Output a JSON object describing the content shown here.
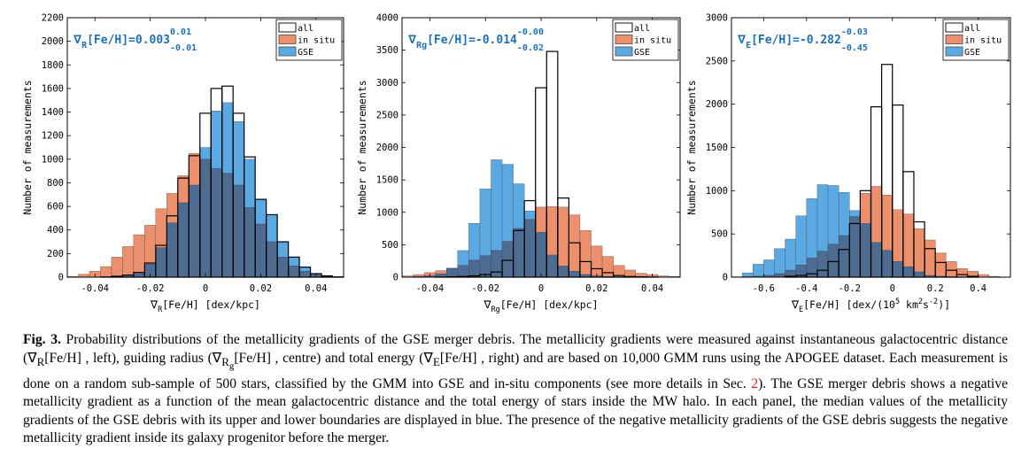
{
  "colors": {
    "all": "#000000",
    "insitu": "#ec8f6d",
    "gse": "#5aa9e2",
    "overlap": "#4e6b91",
    "annot": "#1f6fb2"
  },
  "chart_data": [
    {
      "type": "histogram",
      "ylabel": "Number of measurements",
      "xlabel": "∇_R[Fe/H]  [dex/kpc]",
      "xlabel_parts": {
        "nabla": "∇",
        "sub": "R",
        "rest": "[Fe/H]  [dex/kpc]"
      },
      "xlim": [
        -0.05,
        0.05
      ],
      "ylim": [
        0,
        2200
      ],
      "xticks": [
        -0.04,
        -0.02,
        0,
        0.02,
        0.04
      ],
      "xticklabels": [
        "-0.04",
        "-0.02",
        "0",
        "0.02",
        "0.04"
      ],
      "yticks": [
        0,
        200,
        400,
        600,
        800,
        1000,
        1200,
        1400,
        1600,
        1800,
        2000,
        2200
      ],
      "yticklabels": [
        "0",
        "200",
        "400",
        "600",
        "800",
        "1000",
        "1200",
        "1400",
        "1600",
        "1800",
        "2000",
        "2200"
      ],
      "legend": [
        "all",
        "in situ",
        "GSE"
      ],
      "annotation": {
        "prefix": "∇",
        "sub": "R",
        "text": "[Fe/H]=0.003",
        "sup": "0.01",
        "low": "-0.01"
      },
      "bin_edges": [
        -0.05,
        -0.046,
        -0.042,
        -0.038,
        -0.034,
        -0.03,
        -0.026,
        -0.022,
        -0.018,
        -0.014,
        -0.01,
        -0.006,
        -0.002,
        0.002,
        0.006,
        0.01,
        0.014,
        0.018,
        0.022,
        0.026,
        0.03,
        0.034,
        0.038,
        0.042,
        0.046,
        0.05
      ],
      "series": [
        {
          "name": "all",
          "values": [
            0,
            0,
            0,
            2,
            8,
            18,
            40,
            120,
            270,
            520,
            840,
            1030,
            1390,
            1600,
            1620,
            1390,
            1020,
            660,
            530,
            300,
            170,
            85,
            30,
            10,
            2
          ]
        },
        {
          "name": "in situ",
          "values": [
            5,
            25,
            50,
            90,
            170,
            260,
            360,
            440,
            580,
            710,
            860,
            1050,
            1000,
            920,
            880,
            780,
            590,
            450,
            300,
            170,
            95,
            50,
            30,
            15,
            6
          ]
        },
        {
          "name": "GSE",
          "values": [
            0,
            0,
            0,
            2,
            5,
            20,
            30,
            110,
            250,
            460,
            630,
            780,
            1100,
            1410,
            1480,
            1320,
            1000,
            660,
            530,
            300,
            170,
            85,
            30,
            10,
            2
          ]
        }
      ]
    },
    {
      "type": "histogram",
      "ylabel": "Number of measurements",
      "xlabel": "∇_Rg[Fe/H]  [dex/kpc]",
      "xlabel_parts": {
        "nabla": "∇",
        "sub": "Rg",
        "rest": "[Fe/H]  [dex/kpc]"
      },
      "xlim": [
        -0.05,
        0.05
      ],
      "ylim": [
        0,
        4000
      ],
      "xticks": [
        -0.04,
        -0.02,
        0,
        0.02,
        0.04
      ],
      "xticklabels": [
        "-0.04",
        "-0.02",
        "0",
        "0.02",
        "0.04"
      ],
      "yticks": [
        0,
        500,
        1000,
        1500,
        2000,
        2500,
        3000,
        3500,
        4000
      ],
      "yticklabels": [
        "0",
        "500",
        "1000",
        "1500",
        "2000",
        "2500",
        "3000",
        "3500",
        "4000"
      ],
      "legend": [
        "all",
        "in situ",
        "GSE"
      ],
      "annotation": {
        "prefix": "∇",
        "sub": "Rg",
        "text": "[Fe/H]=-0.014",
        "sup": "-0.00",
        "low": "-0.02"
      },
      "bin_edges": [
        -0.05,
        -0.046,
        -0.042,
        -0.038,
        -0.034,
        -0.03,
        -0.026,
        -0.022,
        -0.018,
        -0.014,
        -0.01,
        -0.006,
        -0.002,
        0.002,
        0.006,
        0.01,
        0.014,
        0.018,
        0.022,
        0.026,
        0.03,
        0.034,
        0.038,
        0.042,
        0.046,
        0.05
      ],
      "series": [
        {
          "name": "all",
          "values": [
            0,
            0,
            0,
            2,
            5,
            10,
            20,
            40,
            80,
            260,
            720,
            1180,
            2920,
            3480,
            1220,
            530,
            240,
            130,
            70,
            25,
            10,
            5,
            2,
            0,
            0
          ]
        },
        {
          "name": "in situ",
          "values": [
            20,
            40,
            70,
            100,
            130,
            180,
            260,
            330,
            410,
            550,
            750,
            890,
            1080,
            1090,
            1080,
            960,
            720,
            480,
            320,
            180,
            110,
            60,
            40,
            20,
            10
          ]
        },
        {
          "name": "GSE",
          "values": [
            2,
            10,
            20,
            50,
            140,
            410,
            830,
            1360,
            1810,
            1740,
            1440,
            1020,
            690,
            340,
            170,
            90,
            40,
            20,
            10,
            5,
            2,
            0,
            0,
            0,
            0
          ]
        }
      ]
    },
    {
      "type": "histogram",
      "ylabel": "Number of measurements",
      "xlabel": "∇_E[Fe/H]  [dex/(10^5 km^2s^-2)]",
      "xlabel_parts": {
        "nabla": "∇",
        "sub": "E",
        "rest": "[Fe/H]  [dex/(10",
        "sup1": "5",
        "mid": " km",
        "sup2": "2",
        "mid2": "s",
        "sup3": "-2",
        "end": ")]"
      },
      "xlim": [
        -0.75,
        0.55
      ],
      "ylim": [
        0,
        3000
      ],
      "xticks": [
        -0.6,
        -0.4,
        -0.2,
        0,
        0.2,
        0.4
      ],
      "xticklabels": [
        "-0.6",
        "-0.4",
        "-0.2",
        "0",
        "0.2",
        "0.4"
      ],
      "yticks": [
        0,
        500,
        1000,
        1500,
        2000,
        2500,
        3000
      ],
      "yticklabels": [
        "0",
        "500",
        "1000",
        "1500",
        "2000",
        "2500",
        "3000"
      ],
      "legend": [
        "all",
        "in situ",
        "GSE"
      ],
      "annotation": {
        "prefix": "∇",
        "sub": "E",
        "text": "[Fe/H]=-0.282",
        "sup": "-0.03",
        "low": "-0.45"
      },
      "bin_edges": [
        -0.75,
        -0.7,
        -0.65,
        -0.6,
        -0.55,
        -0.5,
        -0.45,
        -0.4,
        -0.35,
        -0.3,
        -0.25,
        -0.2,
        -0.15,
        -0.1,
        -0.05,
        0.0,
        0.05,
        0.1,
        0.15,
        0.2,
        0.25,
        0.3,
        0.35,
        0.4,
        0.45,
        0.5
      ],
      "series": [
        {
          "name": "all",
          "values": [
            0,
            0,
            0,
            0,
            0,
            10,
            20,
            40,
            80,
            180,
            320,
            620,
            1000,
            1970,
            2460,
            1990,
            1220,
            640,
            330,
            170,
            80,
            30,
            10,
            0,
            0
          ]
        },
        {
          "name": "in situ",
          "values": [
            0,
            5,
            10,
            20,
            40,
            80,
            140,
            220,
            300,
            380,
            480,
            700,
            970,
            1050,
            950,
            780,
            730,
            560,
            430,
            280,
            180,
            100,
            70,
            30,
            10
          ]
        },
        {
          "name": "GSE",
          "values": [
            5,
            50,
            150,
            200,
            330,
            440,
            710,
            910,
            1070,
            1060,
            980,
            770,
            620,
            400,
            310,
            180,
            120,
            60,
            20,
            10,
            5,
            0,
            0,
            0,
            0
          ]
        }
      ]
    }
  ],
  "caption": {
    "label": "Fig. 3.",
    "t1": " Probability distributions of the metallicity gradients of the GSE merger debris. The metallicity gradients were measured against instantaneous galactocentric distance (∇",
    "s1": "R",
    "t2": "[Fe/H] , left), guiding radius (∇",
    "s2": "R",
    "s2b": "g",
    "t3": "[Fe/H] , centre) and total energy (∇",
    "s3": "E",
    "t4": "[Fe/H] , right) and are based on 10,000 GMM runs using the APOGEE dataset. Each measurement is done on a random sub-sample of 500 stars, classified by the GMM into GSE and in-situ components (see more details in Sec. ",
    "ref": "2",
    "t5": "). The GSE merger debris shows a negative metallicity gradient as a function of the mean galactocentric distance and the total energy of stars inside the MW halo. In each panel, the median values of the metallicity gradients of the GSE debris with its upper and lower boundaries are displayed in blue. The presence of the negative metallicity gradients of the GSE debris suggests the negative metallicity gradient inside its galaxy progenitor before the merger."
  }
}
